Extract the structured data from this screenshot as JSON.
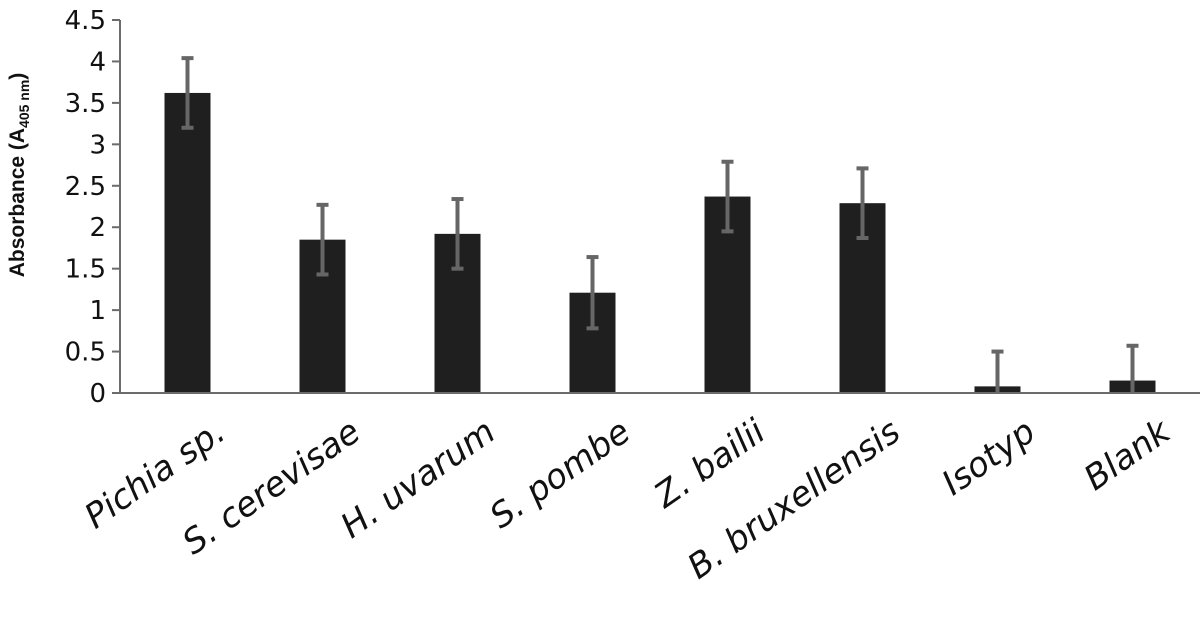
{
  "chart_data": {
    "type": "bar",
    "title": "",
    "xlabel": "",
    "ylabel": {
      "prefix": "Absorbance (A",
      "subscript": "405 nm",
      "suffix": ")"
    },
    "categories": [
      "Pichia sp.",
      "S. cerevisae",
      "H. uvarum",
      "S. pombe",
      "Z. bailii",
      "B. bruxellensis",
      "Isotyp",
      "Blank"
    ],
    "values": [
      3.62,
      1.85,
      1.92,
      1.21,
      2.37,
      2.29,
      0.08,
      0.15
    ],
    "error": [
      0.42,
      0.42,
      0.42,
      0.43,
      0.42,
      0.42,
      0.42,
      0.42
    ],
    "ylim": [
      0,
      4.5
    ],
    "yticks": [
      "0",
      "0.5",
      "1",
      "1.5",
      "2",
      "2.5",
      "3",
      "3.5",
      "4",
      "4.5"
    ],
    "bar_color": "#1f1f1f",
    "error_color": "#666666",
    "grid": false,
    "legend": "none"
  }
}
